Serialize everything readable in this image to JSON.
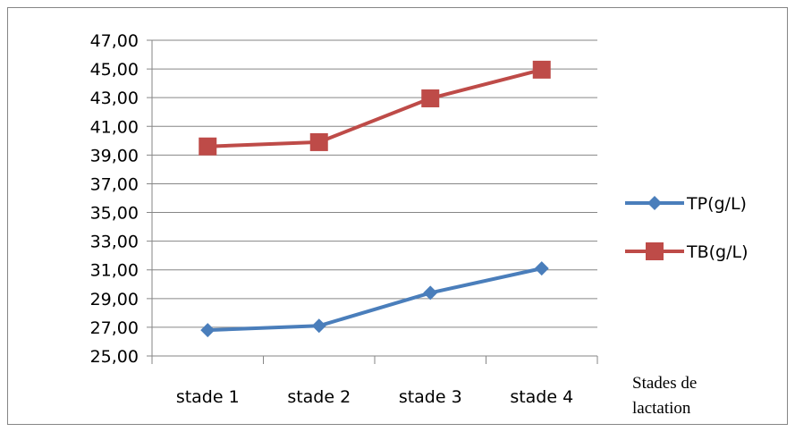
{
  "chart_data": {
    "type": "line",
    "categories": [
      "stade 1",
      "stade 2",
      "stade 3",
      "stade 4"
    ],
    "series": [
      {
        "name": "TP(g/L)",
        "values": [
          26.8,
          27.1,
          29.4,
          31.1
        ],
        "color": "#4a7ebb",
        "marker": "diamond"
      },
      {
        "name": "TB(g/L)",
        "values": [
          39.6,
          39.9,
          42.95,
          44.95
        ],
        "color": "#be4b48",
        "marker": "square"
      }
    ],
    "y_ticks": [
      "25,00",
      "27,00",
      "29,00",
      "31,00",
      "33,00",
      "35,00",
      "37,00",
      "39,00",
      "41,00",
      "43,00",
      "45,00",
      "47,00"
    ],
    "ylim": [
      25,
      47
    ],
    "xlabel_lines": [
      "Stades de",
      "lactation"
    ],
    "grid": true,
    "legend_position": "right"
  }
}
